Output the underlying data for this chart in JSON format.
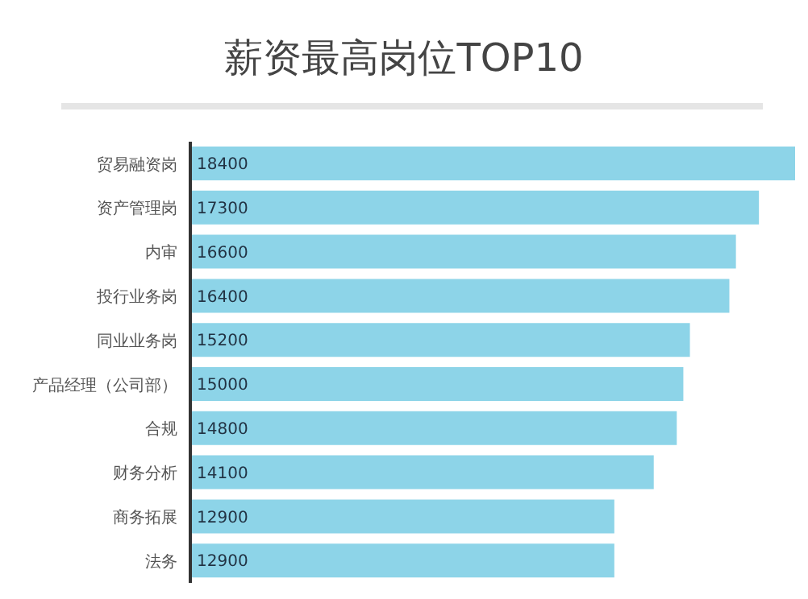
{
  "chart_data": {
    "type": "bar",
    "orientation": "horizontal",
    "title": "薪资最高岗位TOP10",
    "categories": [
      "贸易融资岗",
      "资产管理岗",
      "内审",
      "投行业务岗",
      "同业业务岗",
      "产品经理（公司部）",
      "合规",
      "财务分析",
      "商务拓展",
      "法务"
    ],
    "values": [
      18400,
      17300,
      16600,
      16400,
      15200,
      15000,
      14800,
      14100,
      12900,
      12900
    ],
    "color": "#8dd4e8",
    "data_labels": true
  }
}
